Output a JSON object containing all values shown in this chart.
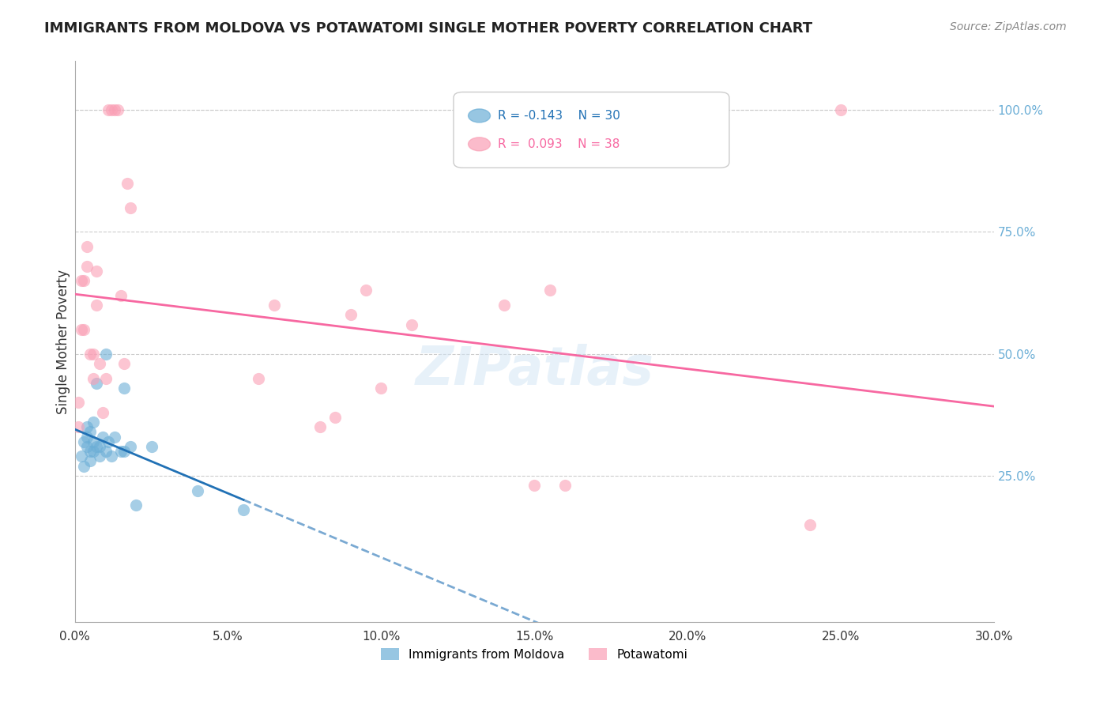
{
  "title": "IMMIGRANTS FROM MOLDOVA VS POTAWATOMI SINGLE MOTHER POVERTY CORRELATION CHART",
  "source": "Source: ZipAtlas.com",
  "xlabel_bottom": "",
  "ylabel": "Single Mother Poverty",
  "right_ytick_labels": [
    "100.0%",
    "75.0%",
    "50.0%",
    "25.0%"
  ],
  "right_ytick_values": [
    1.0,
    0.75,
    0.5,
    0.25
  ],
  "xlim": [
    0.0,
    0.3
  ],
  "ylim": [
    -0.05,
    1.1
  ],
  "xticklabels": [
    "0.0%",
    "5.0%",
    "10.0%",
    "15.0%",
    "20.0%",
    "25.0%",
    "30.0%"
  ],
  "xtick_values": [
    0.0,
    0.05,
    0.1,
    0.15,
    0.2,
    0.25,
    0.3
  ],
  "legend_r1": "R = -0.143",
  "legend_n1": "N = 30",
  "legend_r2": "R = 0.093",
  "legend_n2": "N = 38",
  "moldova_color": "#6baed6",
  "potawatomi_color": "#fa9fb5",
  "moldova_line_color": "#2171b5",
  "potawatomi_line_color": "#f768a1",
  "watermark": "ZIPatlas",
  "legend_label1": "Immigrants from Moldova",
  "legend_label2": "Potawatomi",
  "moldova_x": [
    0.002,
    0.003,
    0.003,
    0.004,
    0.004,
    0.004,
    0.005,
    0.005,
    0.005,
    0.006,
    0.006,
    0.006,
    0.007,
    0.007,
    0.008,
    0.008,
    0.009,
    0.01,
    0.01,
    0.011,
    0.012,
    0.013,
    0.015,
    0.016,
    0.016,
    0.018,
    0.02,
    0.025,
    0.04,
    0.055
  ],
  "moldova_y": [
    0.29,
    0.27,
    0.32,
    0.31,
    0.33,
    0.35,
    0.3,
    0.28,
    0.34,
    0.32,
    0.3,
    0.36,
    0.31,
    0.44,
    0.29,
    0.31,
    0.33,
    0.5,
    0.3,
    0.32,
    0.29,
    0.33,
    0.3,
    0.43,
    0.3,
    0.31,
    0.19,
    0.31,
    0.22,
    0.18
  ],
  "potawatomi_x": [
    0.001,
    0.001,
    0.002,
    0.002,
    0.003,
    0.003,
    0.004,
    0.004,
    0.005,
    0.006,
    0.006,
    0.007,
    0.007,
    0.008,
    0.009,
    0.01,
    0.011,
    0.012,
    0.013,
    0.014,
    0.015,
    0.016,
    0.017,
    0.018,
    0.06,
    0.065,
    0.08,
    0.085,
    0.09,
    0.095,
    0.1,
    0.11,
    0.14,
    0.15,
    0.155,
    0.16,
    0.24,
    0.25
  ],
  "potawatomi_y": [
    0.35,
    0.4,
    0.55,
    0.65,
    0.55,
    0.65,
    0.68,
    0.72,
    0.5,
    0.45,
    0.5,
    0.6,
    0.67,
    0.48,
    0.38,
    0.45,
    1.0,
    1.0,
    1.0,
    1.0,
    0.62,
    0.48,
    0.85,
    0.8,
    0.45,
    0.6,
    0.35,
    0.37,
    0.58,
    0.63,
    0.43,
    0.56,
    0.6,
    0.23,
    0.63,
    0.23,
    0.15,
    1.0
  ]
}
